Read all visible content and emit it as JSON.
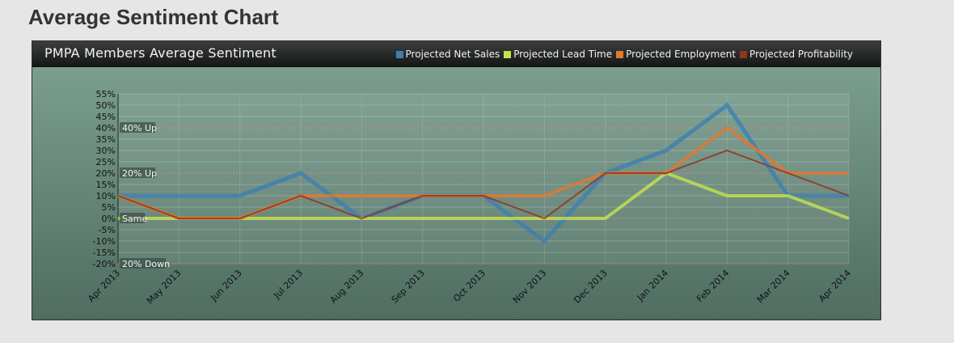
{
  "page": {
    "title": "Average Sentiment Chart"
  },
  "panel": {
    "title": "PMPA Members Average Sentiment"
  },
  "chart_data": {
    "type": "line",
    "title": "PMPA Members Average Sentiment",
    "categories": [
      "Apr 2013",
      "May 2013",
      "Jun 2013",
      "Jul 2013",
      "Aug 2013",
      "Sep 2013",
      "Oct 2013",
      "Nov 2013",
      "Dec 2013",
      "Jan 2014",
      "Feb 2014",
      "Mar 2014",
      "Apr 2014"
    ],
    "y_ticks": [
      "55%",
      "50%",
      "45%",
      "40%",
      "35%",
      "30%",
      "25%",
      "20%",
      "15%",
      "10%",
      "5%",
      "0%",
      "-5%",
      "-10%",
      "-15%",
      "-20%"
    ],
    "ylim": [
      -20,
      55
    ],
    "grid": true,
    "legend_position": "top-right",
    "reference_lines": [
      {
        "label": "40% Up",
        "value": 40
      },
      {
        "label": "20% Up",
        "value": 20
      },
      {
        "label": "Same",
        "value": 0
      },
      {
        "label": "20% Down",
        "value": -20
      }
    ],
    "series": [
      {
        "name": "Projected Net Sales",
        "color": "#3c7fb1",
        "values": [
          10,
          10,
          10,
          20,
          0,
          10,
          10,
          -10,
          20,
          30,
          50,
          10,
          10
        ]
      },
      {
        "name": "Projected Lead Time",
        "color": "#c6e34f",
        "values": [
          0,
          0,
          0,
          0,
          0,
          0,
          0,
          0,
          0,
          20,
          10,
          10,
          0
        ]
      },
      {
        "name": "Projected Employment",
        "color": "#e3782a",
        "values": [
          10,
          0,
          0,
          10,
          10,
          10,
          10,
          10,
          20,
          20,
          40,
          20,
          20
        ]
      },
      {
        "name": "Projected Profitability",
        "color": "#8f3521",
        "values": [
          10,
          0,
          0,
          10,
          0,
          10,
          10,
          0,
          20,
          20,
          30,
          20,
          10
        ]
      }
    ]
  }
}
